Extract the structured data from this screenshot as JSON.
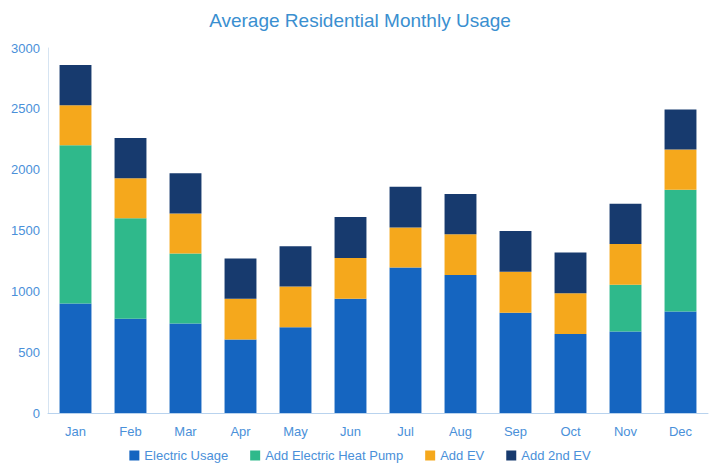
{
  "chart_data": {
    "type": "bar",
    "title": "Average Residential Monthly Usage",
    "categories": [
      "Jan",
      "Feb",
      "Mar",
      "Apr",
      "May",
      "Jun",
      "Jul",
      "Aug",
      "Sep",
      "Oct",
      "Nov",
      "Dec"
    ],
    "series": [
      {
        "name": "Electric Usage",
        "color": "#1565c0",
        "values": [
          900,
          775,
          735,
          605,
          705,
          940,
          1195,
          1135,
          825,
          650,
          670,
          835
        ]
      },
      {
        "name": "Add Electric Heat Pump",
        "color": "#2fb98b",
        "values": [
          1300,
          825,
          575,
          0,
          0,
          0,
          0,
          0,
          0,
          0,
          385,
          1000
        ]
      },
      {
        "name": "Add EV",
        "color": "#f5a81c",
        "values": [
          330,
          330,
          330,
          335,
          335,
          335,
          330,
          335,
          335,
          335,
          335,
          330
        ]
      },
      {
        "name": "Add 2nd EV",
        "color": "#173a6e",
        "values": [
          330,
          330,
          330,
          330,
          330,
          335,
          335,
          330,
          335,
          335,
          330,
          330
        ]
      }
    ],
    "stacked": true,
    "ylim": [
      0,
      3000
    ],
    "yticks": [
      0,
      500,
      1000,
      1500,
      2000,
      2500,
      3000
    ],
    "grid": false,
    "legend": "bottom"
  }
}
